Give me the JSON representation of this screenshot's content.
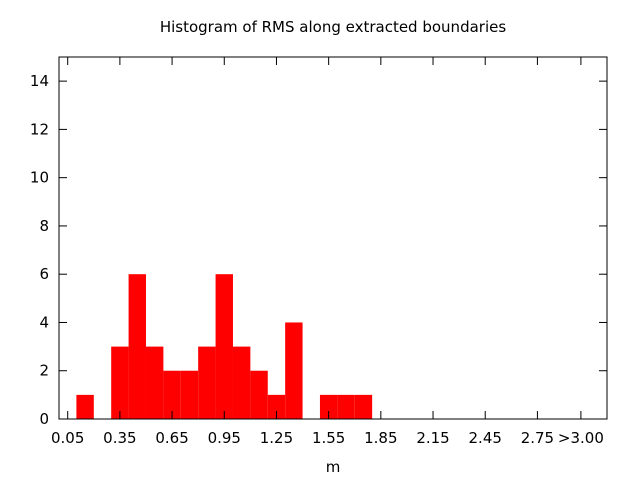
{
  "chart_data": {
    "type": "bar",
    "title": "Histogram of RMS along extracted boundaries",
    "xlabel": "m",
    "ylabel": "",
    "ylim": [
      0,
      15
    ],
    "xlim": [
      0.0,
      3.15
    ],
    "bin_width": 0.1,
    "yticks": [
      0,
      2,
      4,
      6,
      8,
      10,
      12,
      14
    ],
    "xticks": [
      {
        "value": 0.05,
        "label": "0.05"
      },
      {
        "value": 0.35,
        "label": "0.35"
      },
      {
        "value": 0.65,
        "label": "0.65"
      },
      {
        "value": 0.95,
        "label": "0.95"
      },
      {
        "value": 1.25,
        "label": "1.25"
      },
      {
        "value": 1.55,
        "label": "1.55"
      },
      {
        "value": 1.85,
        "label": "1.85"
      },
      {
        "value": 2.15,
        "label": "2.15"
      },
      {
        "value": 2.45,
        "label": "2.45"
      },
      {
        "value": 2.75,
        "label": "2.75"
      },
      {
        "value": 3.0,
        "label": ">3.00"
      }
    ],
    "bins": [
      {
        "x": 0.15,
        "value": 1
      },
      {
        "x": 0.25,
        "value": 0
      },
      {
        "x": 0.35,
        "value": 3
      },
      {
        "x": 0.45,
        "value": 6
      },
      {
        "x": 0.55,
        "value": 3
      },
      {
        "x": 0.65,
        "value": 2
      },
      {
        "x": 0.75,
        "value": 2
      },
      {
        "x": 0.85,
        "value": 3
      },
      {
        "x": 0.95,
        "value": 6
      },
      {
        "x": 1.05,
        "value": 3
      },
      {
        "x": 1.15,
        "value": 2
      },
      {
        "x": 1.25,
        "value": 1
      },
      {
        "x": 1.35,
        "value": 4
      },
      {
        "x": 1.45,
        "value": 0
      },
      {
        "x": 1.55,
        "value": 1
      },
      {
        "x": 1.65,
        "value": 1
      },
      {
        "x": 1.75,
        "value": 1
      }
    ],
    "grid": false,
    "bar_color": "#ff0000"
  }
}
